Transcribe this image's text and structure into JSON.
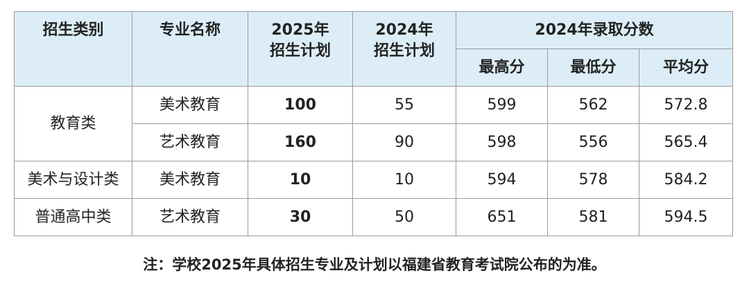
{
  "table": {
    "header": {
      "category": "招生类别",
      "major": "专业名称",
      "plan2025": "2025年\n招生计划",
      "plan2024": "2024年\n招生计划",
      "scores": "2024年录取分数",
      "max": "最高分",
      "min": "最低分",
      "avg": "平均分"
    },
    "groups": [
      {
        "category": "教育类",
        "rows": [
          {
            "major": "美术教育",
            "plan2025": 100,
            "plan2024": 55,
            "max": 599,
            "min": 562,
            "avg": 572.8
          },
          {
            "major": "艺术教育",
            "plan2025": 160,
            "plan2024": 90,
            "max": 598,
            "min": 556,
            "avg": 565.4
          }
        ]
      },
      {
        "category": "美术与设计类",
        "rows": [
          {
            "major": "美术教育",
            "plan2025": 10,
            "plan2024": 10,
            "max": 594,
            "min": 578,
            "avg": 584.2
          }
        ]
      },
      {
        "category": "普通高中类",
        "rows": [
          {
            "major": "艺术教育",
            "plan2025": 30,
            "plan2024": 50,
            "max": 651,
            "min": 581,
            "avg": 594.5
          }
        ]
      }
    ]
  },
  "note": "注：学校2025年具体招生专业及计划以福建省教育考试院公布的为准。"
}
